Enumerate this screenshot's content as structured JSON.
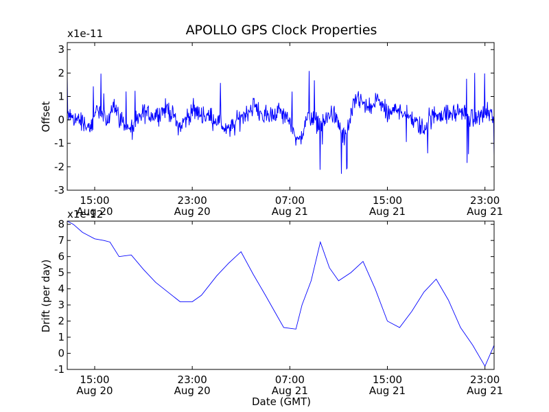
{
  "chart_data": [
    {
      "type": "line",
      "title": "APOLLO GPS Clock Properties",
      "xlabel": "",
      "ylabel": "Offset",
      "y_multiplier_label": "x1e-11",
      "ylim": [
        -3,
        3.3
      ],
      "y_ticks": [
        "-3",
        "-2",
        "-1",
        "0",
        "1",
        "2",
        "3"
      ],
      "x_ticks": [
        {
          "time": "15:00",
          "date": "Aug 20"
        },
        {
          "time": "23:00",
          "date": "Aug 20"
        },
        {
          "time": "07:00",
          "date": "Aug 21"
        },
        {
          "time": "15:00",
          "date": "Aug 21"
        },
        {
          "time": "23:00",
          "date": "Aug 21"
        }
      ],
      "xlim": [
        "2012-08-20T12:45",
        "2012-08-21T23:45"
      ],
      "line_color": "#0000ff",
      "series": [
        {
          "x": [
            "2012-08-20T12:45",
            "2012-08-20T13:45",
            "2012-08-20T14:45",
            "2012-08-20T15:15",
            "2012-08-20T16:00",
            "2012-08-20T16:30",
            "2012-08-20T17:00",
            "2012-08-20T18:00",
            "2012-08-20T19:00",
            "2012-08-20T20:00",
            "2012-08-20T21:00",
            "2012-08-20T22:00",
            "2012-08-20T23:00",
            "2012-08-21T00:00",
            "2012-08-21T01:00",
            "2012-08-21T02:00",
            "2012-08-21T03:00",
            "2012-08-21T04:00",
            "2012-08-21T05:00",
            "2012-08-21T06:00",
            "2012-08-21T07:00",
            "2012-08-21T07:45",
            "2012-08-21T08:30",
            "2012-08-21T09:30",
            "2012-08-21T10:30",
            "2012-08-21T11:30",
            "2012-08-21T12:30",
            "2012-08-21T13:30",
            "2012-08-21T14:15",
            "2012-08-21T15:00",
            "2012-08-21T16:00",
            "2012-08-21T17:00",
            "2012-08-21T18:00",
            "2012-08-21T19:00",
            "2012-08-21T20:00",
            "2012-08-21T21:00",
            "2012-08-21T22:00",
            "2012-08-21T23:00",
            "2012-08-21T23:45"
          ],
          "y": [
            0.2,
            0.0,
            -0.4,
            0.6,
            -0.2,
            0.8,
            0.1,
            -0.5,
            0.3,
            0.2,
            0.5,
            -0.3,
            0.4,
            0.2,
            0.0,
            -0.5,
            0.1,
            0.6,
            0.1,
            0.4,
            0.0,
            -1.0,
            0.2,
            -0.2,
            0.3,
            -0.8,
            1.0,
            0.4,
            0.9,
            0.2,
            0.5,
            0.0,
            -0.4,
            0.3,
            0.2,
            0.4,
            0.0,
            0.3,
            0.1
          ]
        }
      ]
    },
    {
      "type": "line",
      "title": "",
      "xlabel": "Date (GMT)",
      "ylabel": "Drift (per day)",
      "y_multiplier_label": "x1e-12",
      "ylim": [
        -1,
        8.2
      ],
      "y_ticks": [
        "-1",
        "0",
        "1",
        "2",
        "3",
        "4",
        "5",
        "6",
        "7",
        "8"
      ],
      "x_ticks": [
        {
          "time": "15:00",
          "date": "Aug 20"
        },
        {
          "time": "23:00",
          "date": "Aug 20"
        },
        {
          "time": "07:00",
          "date": "Aug 21"
        },
        {
          "time": "15:00",
          "date": "Aug 21"
        },
        {
          "time": "23:00",
          "date": "Aug 21"
        }
      ],
      "xlim": [
        "2012-08-20T12:45",
        "2012-08-21T23:45"
      ],
      "line_color": "#0000ff",
      "series": [
        {
          "x": [
            "2012-08-20T12:45",
            "2012-08-20T13:15",
            "2012-08-20T14:00",
            "2012-08-20T15:00",
            "2012-08-20T15:45",
            "2012-08-20T16:15",
            "2012-08-20T17:00",
            "2012-08-20T18:00",
            "2012-08-20T19:00",
            "2012-08-20T20:00",
            "2012-08-20T21:00",
            "2012-08-20T22:00",
            "2012-08-20T23:00",
            "2012-08-20T23:45",
            "2012-08-21T01:00",
            "2012-08-21T02:00",
            "2012-08-21T03:00",
            "2012-08-21T04:00",
            "2012-08-21T05:00",
            "2012-08-21T05:45",
            "2012-08-21T06:30",
            "2012-08-21T07:30",
            "2012-08-21T08:00",
            "2012-08-21T08:45",
            "2012-08-21T09:30",
            "2012-08-21T10:15",
            "2012-08-21T11:00",
            "2012-08-21T12:00",
            "2012-08-21T13:00",
            "2012-08-21T14:00",
            "2012-08-21T15:00",
            "2012-08-21T16:00",
            "2012-08-21T17:00",
            "2012-08-21T18:00",
            "2012-08-21T19:00",
            "2012-08-21T20:00",
            "2012-08-21T21:00",
            "2012-08-21T22:00",
            "2012-08-21T23:00",
            "2012-08-21T23:45"
          ],
          "y": [
            8.2,
            8.0,
            7.5,
            7.1,
            7.0,
            6.9,
            6.0,
            6.1,
            5.2,
            4.4,
            3.8,
            3.2,
            3.2,
            3.6,
            4.8,
            5.6,
            6.3,
            4.9,
            3.6,
            2.6,
            1.6,
            1.5,
            3.0,
            4.5,
            6.9,
            5.3,
            4.5,
            5.0,
            5.7,
            4.0,
            2.0,
            1.6,
            2.6,
            3.8,
            4.6,
            3.3,
            1.6,
            0.5,
            -0.8,
            0.5
          ]
        }
      ]
    }
  ]
}
